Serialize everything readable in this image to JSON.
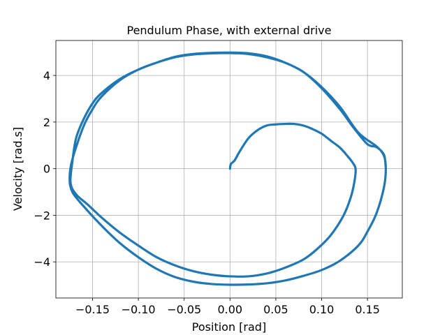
{
  "chart_data": {
    "type": "line",
    "title": "Pendulum Phase, with external drive",
    "xlabel": "Position [rad]",
    "ylabel": "Velocity [rad.s]",
    "xlim": [
      -0.19,
      0.188
    ],
    "ylim": [
      -5.55,
      5.5
    ],
    "xticks": [
      -0.15,
      -0.1,
      -0.05,
      0.0,
      0.05,
      0.1,
      0.15
    ],
    "xtick_labels": [
      "−0.15",
      "−0.10",
      "−0.05",
      "0.00",
      "0.05",
      "0.10",
      "0.15"
    ],
    "yticks": [
      -4,
      -2,
      0,
      2,
      4
    ],
    "ytick_labels": [
      "−4",
      "−2",
      "0",
      "2",
      "4"
    ],
    "grid": true,
    "line_color": "#1f77b4",
    "series": [
      {
        "x": [
          0.0,
          0.001,
          0.005,
          0.01,
          0.02,
          0.03,
          0.04,
          0.05,
          0.06,
          0.07,
          0.08,
          0.09,
          0.1,
          0.11,
          0.12,
          0.128,
          0.134,
          0.137,
          0.136,
          0.132,
          0.124,
          0.11,
          0.095,
          0.08,
          0.06,
          0.04,
          0.02,
          0.0,
          -0.02,
          -0.04,
          -0.06,
          -0.08,
          -0.1,
          -0.12,
          -0.14,
          -0.155,
          -0.168,
          -0.174,
          -0.172,
          -0.168,
          -0.16,
          -0.15,
          -0.14,
          -0.12,
          -0.1,
          -0.08,
          -0.06,
          -0.04,
          -0.02,
          0.0,
          0.02,
          0.04,
          0.06,
          0.08,
          0.1,
          0.12,
          0.14,
          0.16,
          0.168,
          0.17,
          0.168,
          0.16,
          0.15,
          0.14,
          0.12,
          0.1,
          0.08,
          0.06,
          0.04,
          0.02,
          0.0,
          -0.02,
          -0.04,
          -0.06,
          -0.08,
          -0.1,
          -0.12,
          -0.14,
          -0.16,
          -0.172,
          -0.175,
          -0.172,
          -0.16,
          -0.15,
          -0.14,
          -0.12,
          -0.1,
          -0.08,
          -0.06,
          -0.04,
          -0.02,
          0.0,
          0.02,
          0.04,
          0.06,
          0.08,
          0.1,
          0.12,
          0.135,
          0.15,
          0.16,
          0.168,
          0.17
        ],
        "y": [
          0.0,
          0.2,
          0.35,
          0.7,
          1.3,
          1.65,
          1.85,
          1.9,
          1.92,
          1.92,
          1.85,
          1.7,
          1.5,
          1.2,
          0.9,
          0.55,
          0.25,
          0.0,
          -0.5,
          -1.2,
          -2.0,
          -2.85,
          -3.45,
          -3.9,
          -4.25,
          -4.5,
          -4.62,
          -4.62,
          -4.55,
          -4.4,
          -4.15,
          -3.8,
          -3.3,
          -2.75,
          -2.1,
          -1.55,
          -1.1,
          -0.6,
          0.3,
          1.3,
          2.1,
          2.8,
          3.25,
          3.85,
          4.25,
          4.55,
          4.78,
          4.9,
          4.95,
          4.96,
          4.92,
          4.78,
          4.55,
          4.15,
          3.5,
          2.65,
          1.55,
          0.95,
          0.55,
          0.0,
          -0.8,
          -1.9,
          -2.7,
          -3.3,
          -3.95,
          -4.35,
          -4.6,
          -4.8,
          -4.92,
          -4.97,
          -4.98,
          -4.95,
          -4.85,
          -4.65,
          -4.3,
          -3.8,
          -3.2,
          -2.45,
          -1.6,
          -1.0,
          -0.4,
          0.4,
          1.8,
          2.55,
          3.1,
          3.8,
          4.25,
          4.55,
          4.8,
          4.92,
          4.97,
          4.98,
          4.95,
          4.82,
          4.55,
          4.15,
          3.45,
          2.55,
          1.75,
          1.05,
          0.92,
          0.6,
          0.0
        ]
      }
    ]
  }
}
